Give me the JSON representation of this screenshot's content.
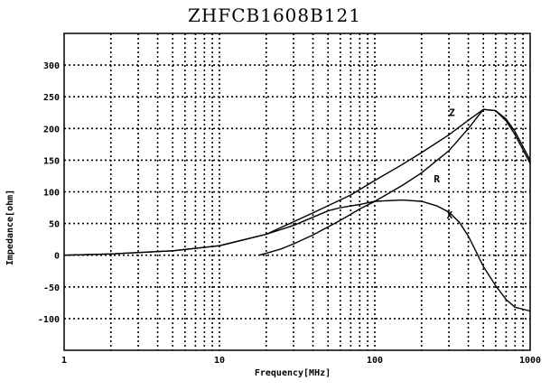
{
  "chart_data": {
    "type": "line",
    "title": "ZHFCB1608B121",
    "xlabel": "Frequency[MHz]",
    "ylabel": "Impedance[ohm]",
    "x_scale": "log",
    "xlim": [
      1,
      1000
    ],
    "ylim": [
      -150,
      350
    ],
    "x_ticks": [
      1,
      10,
      100,
      1000
    ],
    "y_ticks": [
      -100,
      -50,
      0,
      50,
      100,
      150,
      200,
      250,
      300
    ],
    "grid": true,
    "series": [
      {
        "name": "Z",
        "label_at": [
          300,
          220
        ],
        "points": [
          [
            1,
            0
          ],
          [
            2,
            2
          ],
          [
            5,
            7
          ],
          [
            10,
            15
          ],
          [
            20,
            33
          ],
          [
            40,
            67
          ],
          [
            70,
            95
          ],
          [
            100,
            118
          ],
          [
            150,
            143
          ],
          [
            200,
            162
          ],
          [
            300,
            190
          ],
          [
            400,
            213
          ],
          [
            500,
            230
          ],
          [
            600,
            228
          ],
          [
            700,
            215
          ],
          [
            800,
            195
          ],
          [
            1000,
            150
          ]
        ]
      },
      {
        "name": "R",
        "label_at": [
          240,
          115
        ],
        "points": [
          [
            18,
            0
          ],
          [
            20,
            3
          ],
          [
            25,
            10
          ],
          [
            30,
            18
          ],
          [
            40,
            32
          ],
          [
            60,
            55
          ],
          [
            80,
            73
          ],
          [
            100,
            85
          ],
          [
            150,
            110
          ],
          [
            200,
            130
          ],
          [
            300,
            165
          ],
          [
            400,
            200
          ],
          [
            500,
            230
          ],
          [
            600,
            228
          ],
          [
            700,
            212
          ],
          [
            800,
            190
          ],
          [
            1000,
            145
          ]
        ]
      },
      {
        "name": "X",
        "label_at": [
          290,
          58
        ],
        "points": [
          [
            1,
            0
          ],
          [
            2,
            2
          ],
          [
            5,
            7
          ],
          [
            10,
            15
          ],
          [
            20,
            33
          ],
          [
            30,
            47
          ],
          [
            50,
            70
          ],
          [
            60,
            75
          ],
          [
            80,
            80
          ],
          [
            100,
            85
          ],
          [
            150,
            87
          ],
          [
            200,
            85
          ],
          [
            250,
            78
          ],
          [
            300,
            68
          ],
          [
            350,
            52
          ],
          [
            400,
            30
          ],
          [
            450,
            5
          ],
          [
            500,
            -18
          ],
          [
            600,
            -48
          ],
          [
            700,
            -70
          ],
          [
            800,
            -82
          ],
          [
            1000,
            -88
          ]
        ]
      }
    ]
  }
}
